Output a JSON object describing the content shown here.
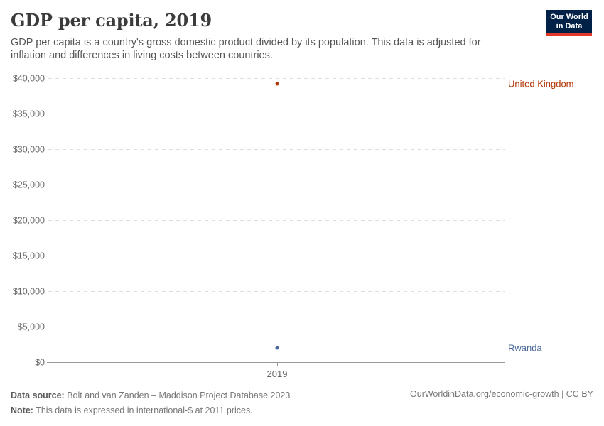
{
  "header": {
    "title": "GDP per capita, 2019",
    "subtitle": "GDP per capita is a country's gross domestic product divided by its population. This data is adjusted for inflation and differences in living costs between countries."
  },
  "logo": {
    "line1": "Our World",
    "line2": "in Data",
    "bg_color": "#002147",
    "accent_color": "#e2372b"
  },
  "chart_data": {
    "type": "scatter",
    "title": "GDP per capita, 2019",
    "x_categories": [
      "2019"
    ],
    "series": [
      {
        "name": "United Kingdom",
        "x": "2019",
        "value": 39200,
        "color": "#b13507"
      },
      {
        "name": "Rwanda",
        "x": "2019",
        "value": 2000,
        "color": "#4c6a9c"
      }
    ],
    "ylim": [
      0,
      40000
    ],
    "yticks": [
      0,
      5000,
      10000,
      15000,
      20000,
      25000,
      30000,
      35000,
      40000
    ],
    "ytick_labels": [
      "$0",
      "$5,000",
      "$10,000",
      "$15,000",
      "$20,000",
      "$25,000",
      "$30,000",
      "$35,000",
      "$40,000"
    ],
    "xlabel": "",
    "ylabel": "",
    "grid": "horizontal-dashed",
    "legend_position": "labels-right-of-plot",
    "grid_color": "#dddddd",
    "axis_color": "#999999",
    "tick_label_color": "#666666",
    "unit": "international-$ at 2011 prices"
  },
  "footer": {
    "source_label": "Data source:",
    "source_text": " Bolt and van Zanden – Maddison Project Database 2023",
    "note_label": "Note:",
    "note_text": " This data is expressed in international-$ at 2011 prices.",
    "link_text": "OurWorldinData.org/economic-growth | CC BY"
  }
}
